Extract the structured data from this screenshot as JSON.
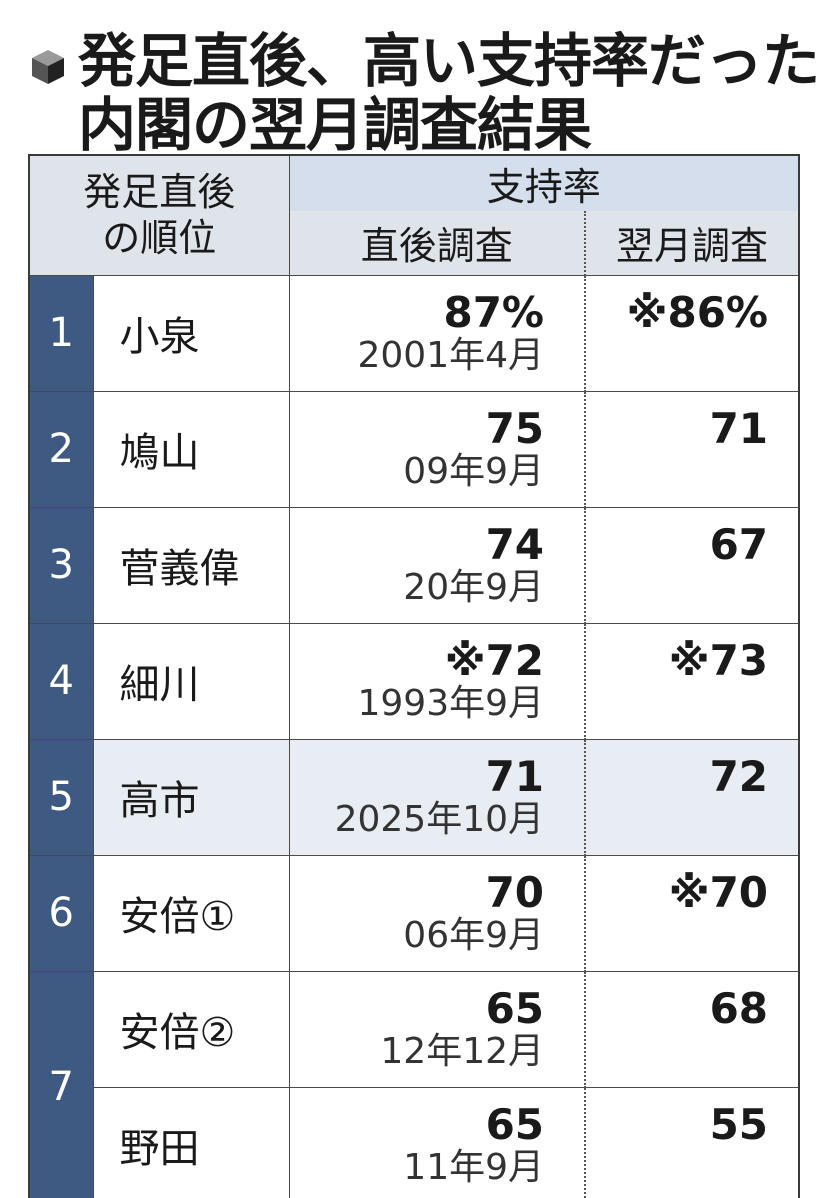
{
  "title": {
    "icon": "cube-bullet-icon",
    "line1": "発足直後、高い支持率だった",
    "line2": "内閣の翌月調査結果"
  },
  "header": {
    "rank_label_line1": "発足直後",
    "rank_label_line2": "の順位",
    "support_label": "支持率",
    "immediate_label": "直後調査",
    "next_month_label": "翌月調査"
  },
  "rows": [
    {
      "rank": "1",
      "name": "小泉",
      "immediate": "87%",
      "date": "2001年4月",
      "next_month": "※86%"
    },
    {
      "rank": "2",
      "name": "鳩山",
      "immediate": "75",
      "date": "09年9月",
      "next_month": "71"
    },
    {
      "rank": "3",
      "name": "菅義偉",
      "immediate": "74",
      "date": "20年9月",
      "next_month": "67"
    },
    {
      "rank": "4",
      "name": "細川",
      "immediate": "※72",
      "date": "1993年9月",
      "next_month": "※73"
    },
    {
      "rank": "5",
      "name": "高市",
      "immediate": "71",
      "date": "2025年10月",
      "next_month": "72"
    },
    {
      "rank": "6",
      "name": "安倍①",
      "immediate": "70",
      "date": "06年9月",
      "next_month": "※70"
    },
    {
      "rank": "7",
      "name": "安倍②",
      "immediate": "65",
      "date": "12年12月",
      "next_month": "68"
    },
    {
      "rank": "",
      "name": "野田",
      "immediate": "65",
      "date": "11年9月",
      "next_month": "55"
    }
  ],
  "colors": {
    "rank_column": "#3f5a82",
    "header_fill": "#dfe3ea",
    "highlight_row": "#e8ecf3"
  }
}
